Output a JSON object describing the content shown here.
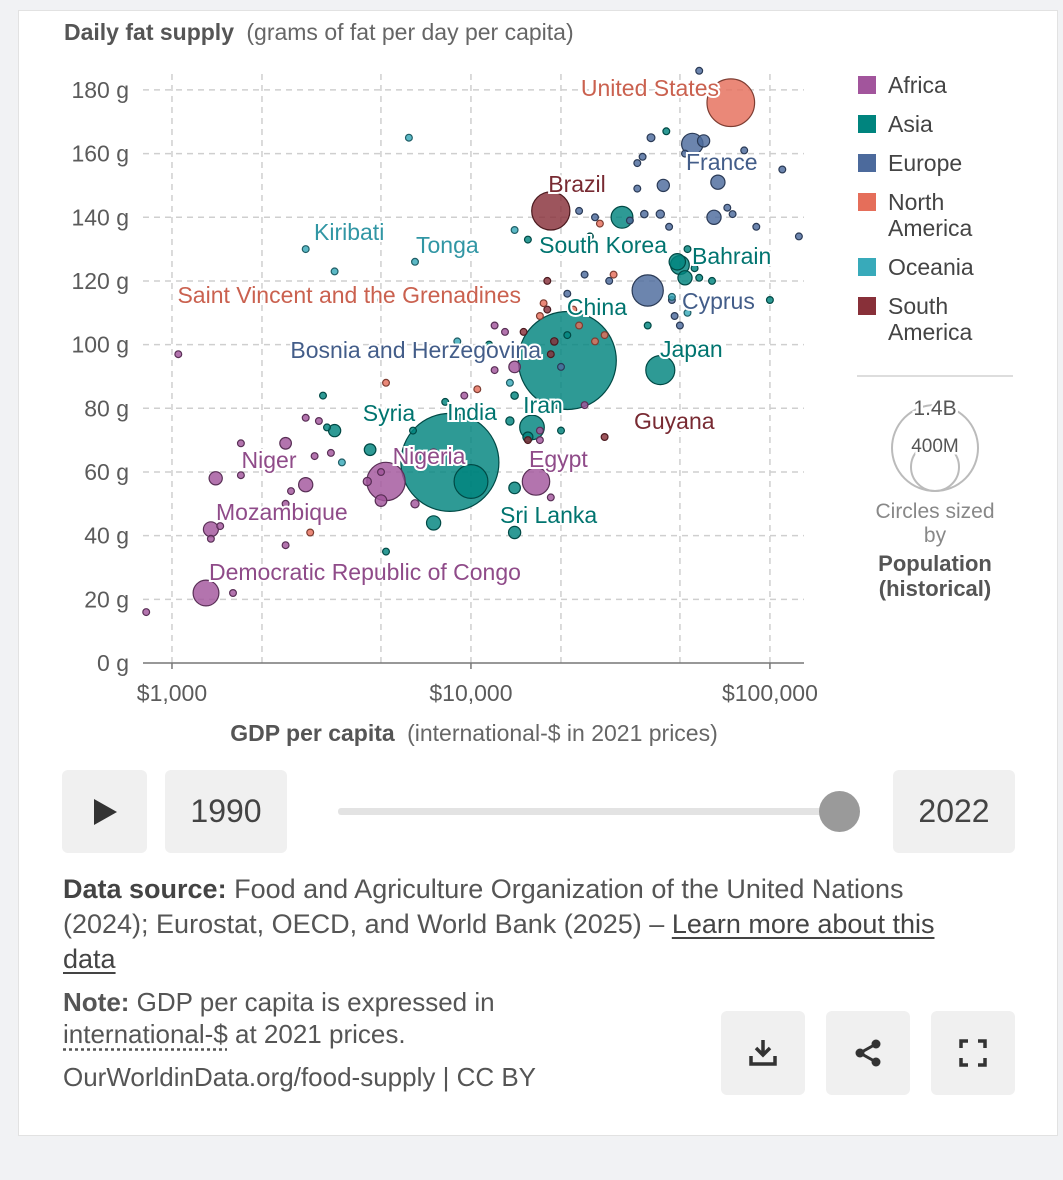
{
  "chart_data": {
    "type": "scatter",
    "title": "Daily fat supply",
    "subtitle": "(grams of fat per day per capita)",
    "xlabel": "GDP per capita",
    "xlabel_unit": "(international-$ in 2021 prices)",
    "x_scale": "log",
    "xlim": [
      800,
      130000
    ],
    "ylim": [
      0,
      185
    ],
    "x_ticks": [
      {
        "value": 1000,
        "label": "$1,000"
      },
      {
        "value": 10000,
        "label": "$10,000"
      },
      {
        "value": 100000,
        "label": "$100,000"
      }
    ],
    "x_minor_ticks": [
      2000,
      5000,
      20000,
      50000
    ],
    "y_ticks": [
      {
        "value": 0,
        "label": "0 g"
      },
      {
        "value": 20,
        "label": "20 g"
      },
      {
        "value": 40,
        "label": "40 g"
      },
      {
        "value": 60,
        "label": "60 g"
      },
      {
        "value": 80,
        "label": "80 g"
      },
      {
        "value": 100,
        "label": "100 g"
      },
      {
        "value": 120,
        "label": "120 g"
      },
      {
        "value": 140,
        "label": "140 g"
      },
      {
        "value": 160,
        "label": "160 g"
      },
      {
        "value": 180,
        "label": "180 g"
      }
    ],
    "legend": [
      {
        "name": "Africa",
        "color": "#a2559c"
      },
      {
        "name": "Asia",
        "color": "#00847e"
      },
      {
        "name": "Europe",
        "color": "#4c6a9c"
      },
      {
        "name": "North America",
        "color": "#e56e5a"
      },
      {
        "name": "Oceania",
        "color": "#38aaba"
      },
      {
        "name": "South America",
        "color": "#883039"
      }
    ],
    "size_legend": {
      "large": "1.4B",
      "small": "400M",
      "caption": "Circles sized by",
      "metric": "Population (historical)"
    },
    "labeled_points": [
      {
        "name": "United States",
        "region": "North America",
        "gdp": 74000,
        "fat": 176,
        "pop": 335
      },
      {
        "name": "France",
        "region": "Europe",
        "gdp": 55000,
        "fat": 163,
        "pop": 68
      },
      {
        "name": "Brazil",
        "region": "South America",
        "gdp": 18500,
        "fat": 142,
        "pop": 215
      },
      {
        "name": "Kiribati",
        "region": "Oceania",
        "gdp": 2800,
        "fat": 130,
        "pop": 0.13
      },
      {
        "name": "Tonga",
        "region": "Oceania",
        "gdp": 6500,
        "fat": 126,
        "pop": 0.1
      },
      {
        "name": "South Korea",
        "region": "Asia",
        "gdp": 50000,
        "fat": 125,
        "pop": 52
      },
      {
        "name": "Bahrain",
        "region": "Asia",
        "gdp": 56000,
        "fat": 124,
        "pop": 1.5
      },
      {
        "name": "Saint Vincent and the Grenadines",
        "region": "North America",
        "gdp": 17500,
        "fat": 113,
        "pop": 0.1
      },
      {
        "name": "China",
        "region": "Asia",
        "gdp": 21000,
        "fat": 95,
        "pop": 1420
      },
      {
        "name": "Cyprus",
        "region": "Europe",
        "gdp": 48000,
        "fat": 109,
        "pop": 1.2
      },
      {
        "name": "Bosnia and Herzegovina",
        "region": "Europe",
        "gdp": 20000,
        "fat": 93,
        "pop": 3.2
      },
      {
        "name": "Japan",
        "region": "Asia",
        "gdp": 43000,
        "fat": 92,
        "pop": 124
      },
      {
        "name": "Syria",
        "region": "Asia",
        "gdp": 3500,
        "fat": 73,
        "pop": 22
      },
      {
        "name": "India",
        "region": "Asia",
        "gdp": 8500,
        "fat": 63,
        "pop": 1420
      },
      {
        "name": "Iran",
        "region": "Asia",
        "gdp": 16000,
        "fat": 74,
        "pop": 89
      },
      {
        "name": "Guyana",
        "region": "South America",
        "gdp": 28000,
        "fat": 71,
        "pop": 0.8
      },
      {
        "name": "Niger",
        "region": "Africa",
        "gdp": 1400,
        "fat": 58,
        "pop": 26
      },
      {
        "name": "Nigeria",
        "region": "Africa",
        "gdp": 5200,
        "fat": 57,
        "pop": 218
      },
      {
        "name": "Egypt",
        "region": "Africa",
        "gdp": 16500,
        "fat": 57,
        "pop": 111
      },
      {
        "name": "Mozambique",
        "region": "Africa",
        "gdp": 1350,
        "fat": 42,
        "pop": 33
      },
      {
        "name": "Sri Lanka",
        "region": "Asia",
        "gdp": 14000,
        "fat": 41,
        "pop": 22
      },
      {
        "name": "Democratic Republic of Congo",
        "region": "Africa",
        "gdp": 1300,
        "fat": 22,
        "pop": 99
      }
    ],
    "other_points": [
      {
        "region": "Europe",
        "gdp": 58000,
        "fat": 186,
        "pop": 5
      },
      {
        "region": "Europe",
        "gdp": 60000,
        "fat": 164,
        "pop": 22
      },
      {
        "region": "Europe",
        "gdp": 40000,
        "fat": 165,
        "pop": 9
      },
      {
        "region": "Asia",
        "gdp": 45000,
        "fat": 167,
        "pop": 4
      },
      {
        "region": "Europe",
        "gdp": 36000,
        "fat": 157,
        "pop": 6
      },
      {
        "region": "Europe",
        "gdp": 37500,
        "fat": 159,
        "pop": 5
      },
      {
        "region": "Europe",
        "gdp": 52000,
        "fat": 160,
        "pop": 7
      },
      {
        "region": "Europe",
        "gdp": 67000,
        "fat": 151,
        "pop": 30
      },
      {
        "region": "Europe",
        "gdp": 44000,
        "fat": 150,
        "pop": 22
      },
      {
        "region": "Europe",
        "gdp": 36000,
        "fat": 149,
        "pop": 4
      },
      {
        "region": "Europe",
        "gdp": 82000,
        "fat": 161,
        "pop": 4
      },
      {
        "region": "Europe",
        "gdp": 110000,
        "fat": 155,
        "pop": 5
      },
      {
        "region": "Europe",
        "gdp": 125000,
        "fat": 134,
        "pop": 5
      },
      {
        "region": "Europe",
        "gdp": 90000,
        "fat": 137,
        "pop": 5
      },
      {
        "region": "Europe",
        "gdp": 72000,
        "fat": 143,
        "pop": 6
      },
      {
        "region": "Europe",
        "gdp": 65000,
        "fat": 140,
        "pop": 30
      },
      {
        "region": "Europe",
        "gdp": 75000,
        "fat": 141,
        "pop": 5
      },
      {
        "region": "Europe",
        "gdp": 43000,
        "fat": 141,
        "pop": 10
      },
      {
        "region": "Europe",
        "gdp": 38000,
        "fat": 141,
        "pop": 8
      },
      {
        "region": "Europe",
        "gdp": 23000,
        "fat": 142,
        "pop": 5
      },
      {
        "region": "Europe",
        "gdp": 26000,
        "fat": 140,
        "pop": 3
      },
      {
        "region": "Europe",
        "gdp": 46000,
        "fat": 137,
        "pop": 6
      },
      {
        "region": "Europe",
        "gdp": 34000,
        "fat": 139,
        "pop": 5
      },
      {
        "region": "Asia",
        "gdp": 32000,
        "fat": 140,
        "pop": 70
      },
      {
        "region": "North America",
        "gdp": 27000,
        "fat": 138,
        "pop": 3
      },
      {
        "region": "Asia",
        "gdp": 25000,
        "fat": 134,
        "pop": 4
      },
      {
        "region": "Oceania",
        "gdp": 14000,
        "fat": 136,
        "pop": 0.1
      },
      {
        "region": "Asia",
        "gdp": 15500,
        "fat": 133,
        "pop": 1
      },
      {
        "region": "Asia",
        "gdp": 49000,
        "fat": 126,
        "pop": 40
      },
      {
        "region": "Asia",
        "gdp": 53000,
        "fat": 130,
        "pop": 3
      },
      {
        "region": "Asia",
        "gdp": 58000,
        "fat": 121,
        "pop": 4
      },
      {
        "region": "Asia",
        "gdp": 52000,
        "fat": 121,
        "pop": 30
      },
      {
        "region": "Asia",
        "gdp": 64000,
        "fat": 120,
        "pop": 3
      },
      {
        "region": "Asia",
        "gdp": 100000,
        "fat": 114,
        "pop": 3
      },
      {
        "region": "Europe",
        "gdp": 39000,
        "fat": 117,
        "pop": 144
      },
      {
        "region": "Europe",
        "gdp": 24000,
        "fat": 122,
        "pop": 3
      },
      {
        "region": "Europe",
        "gdp": 29000,
        "fat": 120,
        "pop": 2
      },
      {
        "region": "Europe",
        "gdp": 47000,
        "fat": 114,
        "pop": 3
      },
      {
        "region": "North America",
        "gdp": 30000,
        "fat": 122,
        "pop": 2
      },
      {
        "region": "South America",
        "gdp": 18000,
        "fat": 120,
        "pop": 3
      },
      {
        "region": "Europe",
        "gdp": 21000,
        "fat": 116,
        "pop": 2
      },
      {
        "region": "Oceania",
        "gdp": 5000,
        "fat": 114,
        "pop": 0.1
      },
      {
        "region": "Oceania",
        "gdp": 3500,
        "fat": 123,
        "pop": 0.1
      },
      {
        "region": "Oceania",
        "gdp": 6200,
        "fat": 165,
        "pop": 0.05
      },
      {
        "region": "Oceania",
        "gdp": 47000,
        "fat": 115,
        "pop": 0.3
      },
      {
        "region": "Oceania",
        "gdp": 53000,
        "fat": 110,
        "pop": 0.5
      },
      {
        "region": "Asia",
        "gdp": 39000,
        "fat": 106,
        "pop": 2
      },
      {
        "region": "Europe",
        "gdp": 50000,
        "fat": 106,
        "pop": 3
      },
      {
        "region": "North America",
        "gdp": 17000,
        "fat": 109,
        "pop": 1
      },
      {
        "region": "South America",
        "gdp": 18000,
        "fat": 111,
        "pop": 1
      },
      {
        "region": "North America",
        "gdp": 22000,
        "fat": 111,
        "pop": 5
      },
      {
        "region": "North America",
        "gdp": 23000,
        "fat": 106,
        "pop": 3
      },
      {
        "region": "North America",
        "gdp": 28000,
        "fat": 103,
        "pop": 1
      },
      {
        "region": "North America",
        "gdp": 26000,
        "fat": 101,
        "pop": 1
      },
      {
        "region": "Africa",
        "gdp": 12000,
        "fat": 106,
        "pop": 1
      },
      {
        "region": "Africa",
        "gdp": 13000,
        "fat": 104,
        "pop": 1
      },
      {
        "region": "South America",
        "gdp": 15000,
        "fat": 104,
        "pop": 1
      },
      {
        "region": "South America",
        "gdp": 19000,
        "fat": 101,
        "pop": 8
      },
      {
        "region": "South America",
        "gdp": 18500,
        "fat": 97,
        "pop": 6
      },
      {
        "region": "Asia",
        "gdp": 21000,
        "fat": 103,
        "pop": 2
      },
      {
        "region": "Asia",
        "gdp": 11500,
        "fat": 100,
        "pop": 1
      },
      {
        "region": "Oceania",
        "gdp": 9000,
        "fat": 101,
        "pop": 0.3
      },
      {
        "region": "Africa",
        "gdp": 1050,
        "fat": 97,
        "pop": 1
      },
      {
        "region": "Africa",
        "gdp": 14000,
        "fat": 93,
        "pop": 20
      },
      {
        "region": "Africa",
        "gdp": 12000,
        "fat": 92,
        "pop": 2
      },
      {
        "region": "Oceania",
        "gdp": 13500,
        "fat": 88,
        "pop": 0.3
      },
      {
        "region": "North America",
        "gdp": 10500,
        "fat": 86,
        "pop": 1
      },
      {
        "region": "North America",
        "gdp": 5200,
        "fat": 88,
        "pop": 1
      },
      {
        "region": "Africa",
        "gdp": 9500,
        "fat": 84,
        "pop": 1
      },
      {
        "region": "Asia",
        "gdp": 14000,
        "fat": 84,
        "pop": 8
      },
      {
        "region": "Asia",
        "gdp": 3200,
        "fat": 84,
        "pop": 2
      },
      {
        "region": "Africa",
        "gdp": 2800,
        "fat": 77,
        "pop": 2
      },
      {
        "region": "Asia",
        "gdp": 8200,
        "fat": 82,
        "pop": 2
      },
      {
        "region": "Asia",
        "gdp": 6400,
        "fat": 73,
        "pop": 5
      },
      {
        "region": "Asia",
        "gdp": 3300,
        "fat": 74,
        "pop": 2
      },
      {
        "region": "Africa",
        "gdp": 3100,
        "fat": 76,
        "pop": 1
      },
      {
        "region": "Africa",
        "gdp": 24000,
        "fat": 81,
        "pop": 1
      },
      {
        "region": "Asia",
        "gdp": 13500,
        "fat": 76,
        "pop": 10
      },
      {
        "region": "Asia",
        "gdp": 15500,
        "fat": 71,
        "pop": 15
      },
      {
        "region": "Asia",
        "gdp": 20000,
        "fat": 73,
        "pop": 2
      },
      {
        "region": "Africa",
        "gdp": 17000,
        "fat": 73,
        "pop": 2
      },
      {
        "region": "Africa",
        "gdp": 17000,
        "fat": 70,
        "pop": 3
      },
      {
        "region": "South America",
        "gdp": 15500,
        "fat": 70,
        "pop": 5
      },
      {
        "region": "Africa",
        "gdp": 1700,
        "fat": 69,
        "pop": 2
      },
      {
        "region": "Africa",
        "gdp": 2400,
        "fat": 69,
        "pop": 20
      },
      {
        "region": "Africa",
        "gdp": 3400,
        "fat": 66,
        "pop": 3
      },
      {
        "region": "Africa",
        "gdp": 3000,
        "fat": 65,
        "pop": 3
      },
      {
        "region": "Oceania",
        "gdp": 3700,
        "fat": 63,
        "pop": 1
      },
      {
        "region": "Asia",
        "gdp": 4600,
        "fat": 67,
        "pop": 20
      },
      {
        "region": "Africa",
        "gdp": 7500,
        "fat": 66,
        "pop": 10
      },
      {
        "region": "Africa",
        "gdp": 5000,
        "fat": 60,
        "pop": 5
      },
      {
        "region": "Africa",
        "gdp": 1700,
        "fat": 59,
        "pop": 3
      },
      {
        "region": "Africa",
        "gdp": 2800,
        "fat": 56,
        "pop": 30
      },
      {
        "region": "Africa",
        "gdp": 4500,
        "fat": 57,
        "pop": 10
      },
      {
        "region": "Africa",
        "gdp": 5000,
        "fat": 51,
        "pop": 20
      },
      {
        "region": "Africa",
        "gdp": 6500,
        "fat": 50,
        "pop": 10
      },
      {
        "region": "Africa",
        "gdp": 2500,
        "fat": 54,
        "pop": 2
      },
      {
        "region": "Africa",
        "gdp": 2400,
        "fat": 50,
        "pop": 3
      },
      {
        "region": "Africa",
        "gdp": 1350,
        "fat": 39,
        "pop": 2
      },
      {
        "region": "Africa",
        "gdp": 1450,
        "fat": 43,
        "pop": 3
      },
      {
        "region": "Africa",
        "gdp": 2400,
        "fat": 37,
        "pop": 1
      },
      {
        "region": "Africa",
        "gdp": 18500,
        "fat": 52,
        "pop": 3
      },
      {
        "region": "Asia",
        "gdp": 14000,
        "fat": 55,
        "pop": 20
      },
      {
        "region": "Asia",
        "gdp": 7500,
        "fat": 44,
        "pop": 30
      },
      {
        "region": "Asia",
        "gdp": 5200,
        "fat": 35,
        "pop": 1
      },
      {
        "region": "North America",
        "gdp": 2900,
        "fat": 41,
        "pop": 3
      },
      {
        "region": "Africa",
        "gdp": 1600,
        "fat": 22,
        "pop": 3
      },
      {
        "region": "Africa",
        "gdp": 820,
        "fat": 16,
        "pop": 1
      },
      {
        "region": "Asia",
        "gdp": 10000,
        "fat": 57,
        "pop": 170
      }
    ]
  },
  "controls": {
    "start_year": "1990",
    "end_year": "2022",
    "play_icon": "play-icon"
  },
  "footer": {
    "source_label": "Data source:",
    "source_text": "Food and Agriculture Organization of the United Nations (2024); Eurostat, OECD, and World Bank (2025) –",
    "learn_more": "Learn more about this data",
    "note_label": "Note:",
    "note_text_before": "GDP per capita is expressed in",
    "note_link": "international-$",
    "note_text_after": "at 2021 prices.",
    "credit": "OurWorldinData.org/food-supply | CC BY"
  },
  "icons": {
    "download": "download-icon",
    "share": "share-icon",
    "fullscreen": "fullscreen-icon"
  }
}
